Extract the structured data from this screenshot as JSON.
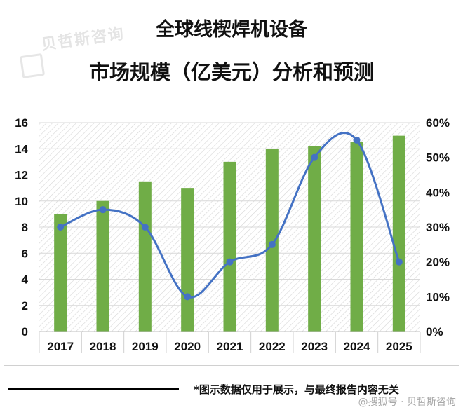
{
  "title_line1": "全球线楔焊机设备",
  "title_line2": "市场规模（亿美元）分析和预测",
  "watermark_text": "贝哲斯咨询",
  "footnote": "*图示数据仅用于展示，与最终报告内容无关",
  "source_label": "@搜狐号 · 贝哲斯咨询",
  "colors": {
    "bar": "#70ad47",
    "line": "#4472c4",
    "grid": "#d9d9d9",
    "text": "#111111"
  },
  "chart_data": {
    "type": "bar",
    "categories": [
      "2017",
      "2018",
      "2019",
      "2020",
      "2021",
      "2022",
      "2023",
      "2024",
      "2025"
    ],
    "series": [
      {
        "type": "bar",
        "axis": "left",
        "values": [
          9,
          10,
          11.5,
          11,
          13,
          14,
          14.2,
          14.5,
          15
        ]
      },
      {
        "type": "line",
        "axis": "right",
        "smooth": true,
        "markers": "circle",
        "values": [
          0.3,
          0.35,
          0.3,
          0.1,
          0.2,
          0.25,
          0.5,
          0.55,
          0.2
        ]
      }
    ],
    "y_left": {
      "lim": [
        0,
        16
      ],
      "ticks": [
        "0",
        "2",
        "4",
        "6",
        "8",
        "10",
        "12",
        "14",
        "16"
      ]
    },
    "y_right": {
      "lim": [
        0,
        0.6
      ],
      "ticks": [
        "0%",
        "10%",
        "20%",
        "30%",
        "40%",
        "50%",
        "60%"
      ]
    },
    "plot_background": "diagonal-hatch",
    "grid": true,
    "legend": "none"
  }
}
